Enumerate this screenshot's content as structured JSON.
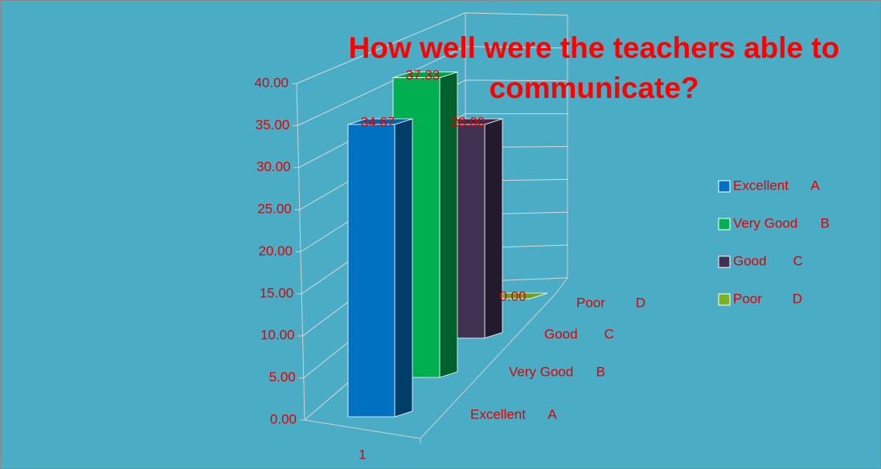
{
  "chart_data": {
    "type": "bar3d",
    "title": "How well were the teachers able to communicate?",
    "categories": [
      "1"
    ],
    "series": [
      {
        "name": "Excellent      A",
        "color": "#0070c0",
        "values": [
          34.67
        ],
        "value_labels": [
          "34.67"
        ]
      },
      {
        "name": "Very Good      B",
        "color": "#00b050",
        "values": [
          37.33
        ],
        "value_labels": [
          "37.33"
        ]
      },
      {
        "name": "Good       C",
        "color": "#403151",
        "values": [
          28.0
        ],
        "value_labels": [
          "28.00"
        ]
      },
      {
        "name": "Poor        D",
        "color": "#7fb020",
        "values": [
          0.0
        ],
        "value_labels": [
          "0.00"
        ]
      }
    ],
    "ylim": [
      0,
      40
    ],
    "yticks": [
      {
        "value": 0,
        "label": "0.00"
      },
      {
        "value": 5,
        "label": "5.00"
      },
      {
        "value": 10,
        "label": "10.00"
      },
      {
        "value": 15,
        "label": "15.00"
      },
      {
        "value": 20,
        "label": "20.00"
      },
      {
        "value": 25,
        "label": "25.00"
      },
      {
        "value": 30,
        "label": "30.00"
      },
      {
        "value": 35,
        "label": "35.00"
      },
      {
        "value": 40,
        "label": "40.00"
      }
    ],
    "grid": true,
    "legend": "right"
  }
}
